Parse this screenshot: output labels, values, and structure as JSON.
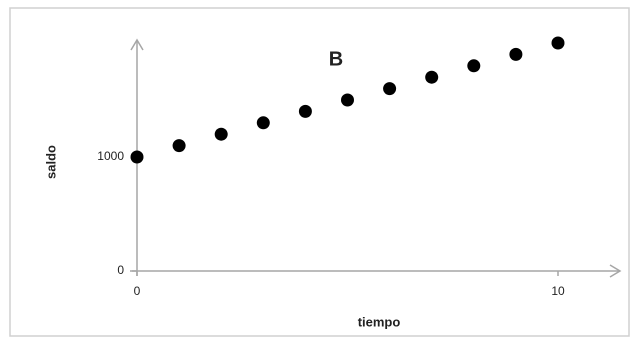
{
  "chart_data": {
    "type": "scatter",
    "title": "B",
    "x_label": "tiempo",
    "y_label": "saldo",
    "x": [
      0,
      1,
      2,
      3,
      4,
      5,
      6,
      7,
      8,
      9,
      10
    ],
    "values": [
      1000,
      1100,
      1200,
      1300,
      1400,
      1500,
      1600,
      1700,
      1800,
      1900,
      2000
    ],
    "color": "#000000",
    "xlim": [
      0,
      10
    ],
    "xticks": [
      0,
      10
    ],
    "ylim": [
      0,
      2000
    ],
    "yticks": [
      0,
      1000
    ],
    "grid": false
  }
}
